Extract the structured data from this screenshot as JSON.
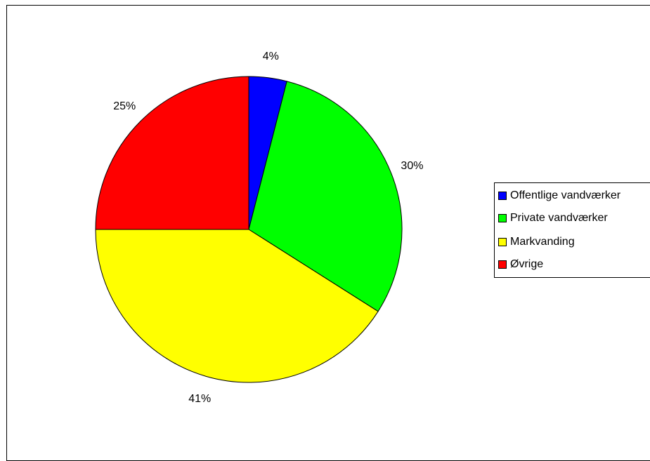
{
  "chart_data": {
    "type": "pie",
    "categories": [
      "Offentlige vandværker",
      "Private vandværker",
      "Markvanding",
      "Øvrige"
    ],
    "values": [
      4,
      30,
      41,
      25
    ],
    "labels": [
      "4%",
      "30%",
      "41%",
      "25%"
    ],
    "colors": [
      "#0000ff",
      "#00ff00",
      "#ffff00",
      "#ff0000"
    ],
    "legend_position": "right"
  },
  "legend": {
    "items": [
      {
        "label": "Offentlige vandværker",
        "color": "#0000ff"
      },
      {
        "label": "Private vandværker",
        "color": "#00ff00"
      },
      {
        "label": "Markvanding",
        "color": "#ffff00"
      },
      {
        "label": "Øvrige",
        "color": "#ff0000"
      }
    ]
  }
}
